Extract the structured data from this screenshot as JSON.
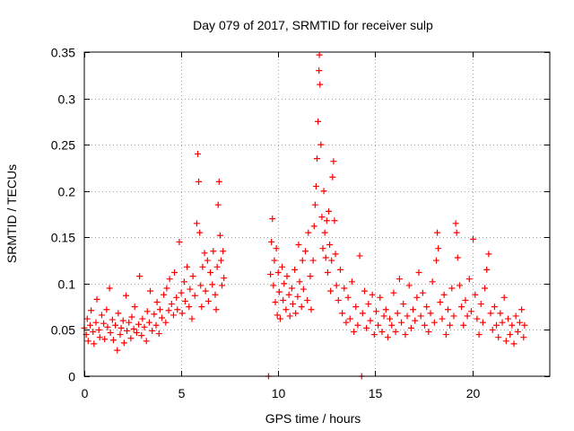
{
  "chart_data": {
    "type": "scatter",
    "title": "Day 079 of 2017, SRMTID for receiver sulp",
    "xlabel": "GPS time / hours",
    "ylabel": "SRMTID / TECUs",
    "xlim": [
      0,
      24
    ],
    "ylim": [
      0,
      0.35
    ],
    "grid": true,
    "marker": "+",
    "xticks": [
      {
        "value": 0,
        "label": "0"
      },
      {
        "value": 5,
        "label": "5"
      },
      {
        "value": 10,
        "label": "10"
      },
      {
        "value": 15,
        "label": "15"
      },
      {
        "value": 20,
        "label": "20"
      }
    ],
    "yticks": [
      {
        "value": 0,
        "label": "0"
      },
      {
        "value": 0.05,
        "label": "0.05"
      },
      {
        "value": 0.1,
        "label": "0.1"
      },
      {
        "value": 0.15,
        "label": "0.15"
      },
      {
        "value": 0.2,
        "label": "0.2"
      },
      {
        "value": 0.25,
        "label": "0.25"
      },
      {
        "value": 0.3,
        "label": "0.3"
      },
      {
        "value": 0.35,
        "label": "0.35"
      }
    ],
    "series": [
      {
        "name": "SRMTID",
        "color": "#ff0000",
        "points": [
          [
            0.0,
            0.052
          ],
          [
            0.1,
            0.045
          ],
          [
            0.15,
            0.062
          ],
          [
            0.2,
            0.038
          ],
          [
            0.3,
            0.055
          ],
          [
            0.35,
            0.071
          ],
          [
            0.45,
            0.048
          ],
          [
            0.5,
            0.035
          ],
          [
            0.6,
            0.058
          ],
          [
            0.65,
            0.083
          ],
          [
            0.75,
            0.05
          ],
          [
            0.8,
            0.042
          ],
          [
            0.9,
            0.066
          ],
          [
            1.0,
            0.057
          ],
          [
            1.05,
            0.04
          ],
          [
            1.15,
            0.072
          ],
          [
            1.2,
            0.053
          ],
          [
            1.3,
            0.095
          ],
          [
            1.35,
            0.047
          ],
          [
            1.45,
            0.061
          ],
          [
            1.5,
            0.039
          ],
          [
            1.6,
            0.055
          ],
          [
            1.7,
            0.028
          ],
          [
            1.75,
            0.068
          ],
          [
            1.85,
            0.045
          ],
          [
            1.9,
            0.052
          ],
          [
            2.0,
            0.06
          ],
          [
            2.05,
            0.036
          ],
          [
            2.15,
            0.087
          ],
          [
            2.2,
            0.049
          ],
          [
            2.3,
            0.058
          ],
          [
            2.4,
            0.041
          ],
          [
            2.45,
            0.064
          ],
          [
            2.55,
            0.051
          ],
          [
            2.6,
            0.075
          ],
          [
            2.7,
            0.047
          ],
          [
            2.8,
            0.056
          ],
          [
            2.85,
            0.108
          ],
          [
            2.95,
            0.044
          ],
          [
            3.0,
            0.062
          ],
          [
            3.1,
            0.053
          ],
          [
            3.2,
            0.038
          ],
          [
            3.25,
            0.07
          ],
          [
            3.35,
            0.058
          ],
          [
            3.4,
            0.092
          ],
          [
            3.5,
            0.049
          ],
          [
            3.6,
            0.067
          ],
          [
            3.7,
            0.055
          ],
          [
            3.75,
            0.08
          ],
          [
            3.85,
            0.046
          ],
          [
            3.9,
            0.072
          ],
          [
            4.0,
            0.063
          ],
          [
            4.1,
            0.088
          ],
          [
            4.2,
            0.058
          ],
          [
            4.25,
            0.095
          ],
          [
            4.35,
            0.071
          ],
          [
            4.4,
            0.105
          ],
          [
            4.5,
            0.078
          ],
          [
            4.6,
            0.066
          ],
          [
            4.65,
            0.112
          ],
          [
            4.75,
            0.085
          ],
          [
            4.8,
            0.072
          ],
          [
            4.9,
            0.145
          ],
          [
            5.0,
            0.09
          ],
          [
            5.05,
            0.068
          ],
          [
            5.15,
            0.102
          ],
          [
            5.2,
            0.081
          ],
          [
            5.3,
            0.118
          ],
          [
            5.4,
            0.075
          ],
          [
            5.45,
            0.094
          ],
          [
            5.55,
            0.062
          ],
          [
            5.6,
            0.108
          ],
          [
            5.7,
            0.087
          ],
          [
            5.8,
            0.165
          ],
          [
            5.85,
            0.24
          ],
          [
            5.9,
            0.21
          ],
          [
            5.95,
            0.155
          ],
          [
            6.0,
            0.098
          ],
          [
            6.05,
            0.075
          ],
          [
            6.1,
            0.118
          ],
          [
            6.2,
            0.133
          ],
          [
            6.25,
            0.092
          ],
          [
            6.35,
            0.125
          ],
          [
            6.4,
            0.081
          ],
          [
            6.5,
            0.112
          ],
          [
            6.6,
            0.099
          ],
          [
            6.65,
            0.135
          ],
          [
            6.75,
            0.088
          ],
          [
            6.8,
            0.072
          ],
          [
            6.85,
            0.118
          ],
          [
            6.9,
            0.185
          ],
          [
            6.95,
            0.21
          ],
          [
            7.0,
            0.152
          ],
          [
            7.05,
            0.125
          ],
          [
            7.1,
            0.098
          ],
          [
            7.15,
            0.135
          ],
          [
            7.2,
            0.106
          ],
          [
            9.5,
            0.0
          ],
          [
            9.6,
            0.11
          ],
          [
            9.65,
            0.145
          ],
          [
            9.7,
            0.17
          ],
          [
            9.75,
            0.098
          ],
          [
            9.8,
            0.125
          ],
          [
            9.85,
            0.08
          ],
          [
            9.9,
            0.138
          ],
          [
            9.95,
            0.066
          ],
          [
            10.0,
            0.112
          ],
          [
            10.05,
            0.091
          ],
          [
            10.1,
            0.062
          ],
          [
            10.2,
            0.118
          ],
          [
            10.25,
            0.082
          ],
          [
            10.3,
            0.1
          ],
          [
            10.4,
            0.072
          ],
          [
            10.45,
            0.108
          ],
          [
            10.55,
            0.088
          ],
          [
            10.6,
            0.065
          ],
          [
            10.7,
            0.095
          ],
          [
            10.75,
            0.078
          ],
          [
            10.85,
            0.115
          ],
          [
            10.9,
            0.068
          ],
          [
            11.0,
            0.086
          ],
          [
            11.05,
            0.142
          ],
          [
            11.1,
            0.102
          ],
          [
            11.2,
            0.075
          ],
          [
            11.25,
            0.125
          ],
          [
            11.3,
            0.094
          ],
          [
            11.4,
            0.135
          ],
          [
            11.5,
            0.082
          ],
          [
            11.55,
            0.155
          ],
          [
            11.65,
            0.108
          ],
          [
            11.7,
            0.072
          ],
          [
            11.8,
            0.125
          ],
          [
            11.85,
            0.162
          ],
          [
            11.9,
            0.185
          ],
          [
            11.95,
            0.205
          ],
          [
            12.0,
            0.235
          ],
          [
            12.05,
            0.275
          ],
          [
            12.1,
            0.33
          ],
          [
            12.12,
            0.347
          ],
          [
            12.15,
            0.315
          ],
          [
            12.2,
            0.25
          ],
          [
            12.25,
            0.172
          ],
          [
            12.3,
            0.138
          ],
          [
            12.35,
            0.2
          ],
          [
            12.4,
            0.155
          ],
          [
            12.45,
            0.128
          ],
          [
            12.5,
            0.168
          ],
          [
            12.55,
            0.112
          ],
          [
            12.6,
            0.178
          ],
          [
            12.65,
            0.142
          ],
          [
            12.7,
            0.092
          ],
          [
            12.75,
            0.125
          ],
          [
            12.8,
            0.215
          ],
          [
            12.85,
            0.232
          ],
          [
            12.9,
            0.168
          ],
          [
            12.95,
            0.132
          ],
          [
            13.0,
            0.098
          ],
          [
            13.1,
            0.082
          ],
          [
            13.2,
            0.115
          ],
          [
            13.3,
            0.068
          ],
          [
            13.4,
            0.095
          ],
          [
            13.5,
            0.058
          ],
          [
            13.6,
            0.085
          ],
          [
            13.7,
            0.062
          ],
          [
            13.8,
            0.102
          ],
          [
            13.9,
            0.048
          ],
          [
            14.0,
            0.075
          ],
          [
            14.1,
            0.055
          ],
          [
            14.2,
            0.13
          ],
          [
            14.3,
            0.0
          ],
          [
            14.35,
            0.068
          ],
          [
            14.45,
            0.092
          ],
          [
            14.55,
            0.052
          ],
          [
            14.65,
            0.078
          ],
          [
            14.75,
            0.06
          ],
          [
            14.85,
            0.088
          ],
          [
            14.95,
            0.045
          ],
          [
            15.05,
            0.07
          ],
          [
            15.15,
            0.055
          ],
          [
            15.25,
            0.085
          ],
          [
            15.35,
            0.048
          ],
          [
            15.45,
            0.065
          ],
          [
            15.55,
            0.072
          ],
          [
            15.65,
            0.042
          ],
          [
            15.75,
            0.062
          ],
          [
            15.85,
            0.055
          ],
          [
            15.95,
            0.09
          ],
          [
            16.05,
            0.048
          ],
          [
            16.15,
            0.068
          ],
          [
            16.25,
            0.105
          ],
          [
            16.35,
            0.058
          ],
          [
            16.45,
            0.078
          ],
          [
            16.55,
            0.045
          ],
          [
            16.65,
            0.065
          ],
          [
            16.75,
            0.098
          ],
          [
            16.85,
            0.052
          ],
          [
            16.95,
            0.072
          ],
          [
            17.05,
            0.06
          ],
          [
            17.15,
            0.085
          ],
          [
            17.25,
            0.112
          ],
          [
            17.35,
            0.065
          ],
          [
            17.45,
            0.09
          ],
          [
            17.55,
            0.055
          ],
          [
            17.65,
            0.075
          ],
          [
            17.75,
            0.048
          ],
          [
            17.85,
            0.068
          ],
          [
            17.95,
            0.102
          ],
          [
            18.05,
            0.058
          ],
          [
            18.15,
            0.125
          ],
          [
            18.2,
            0.155
          ],
          [
            18.25,
            0.138
          ],
          [
            18.35,
            0.08
          ],
          [
            18.45,
            0.062
          ],
          [
            18.55,
            0.088
          ],
          [
            18.65,
            0.045
          ],
          [
            18.75,
            0.072
          ],
          [
            18.85,
            0.055
          ],
          [
            18.95,
            0.095
          ],
          [
            19.05,
            0.065
          ],
          [
            19.15,
            0.165
          ],
          [
            19.2,
            0.155
          ],
          [
            19.25,
            0.128
          ],
          [
            19.35,
            0.098
          ],
          [
            19.45,
            0.075
          ],
          [
            19.55,
            0.055
          ],
          [
            19.65,
            0.082
          ],
          [
            19.75,
            0.065
          ],
          [
            19.85,
            0.105
          ],
          [
            19.95,
            0.07
          ],
          [
            20.05,
            0.148
          ],
          [
            20.15,
            0.088
          ],
          [
            20.25,
            0.062
          ],
          [
            20.35,
            0.045
          ],
          [
            20.45,
            0.078
          ],
          [
            20.55,
            0.058
          ],
          [
            20.65,
            0.095
          ],
          [
            20.75,
            0.115
          ],
          [
            20.85,
            0.132
          ],
          [
            20.95,
            0.068
          ],
          [
            21.05,
            0.05
          ],
          [
            21.15,
            0.075
          ],
          [
            21.25,
            0.055
          ],
          [
            21.35,
            0.042
          ],
          [
            21.45,
            0.068
          ],
          [
            21.55,
            0.058
          ],
          [
            21.65,
            0.085
          ],
          [
            21.75,
            0.038
          ],
          [
            21.85,
            0.062
          ],
          [
            21.95,
            0.045
          ],
          [
            22.05,
            0.055
          ],
          [
            22.15,
            0.035
          ],
          [
            22.25,
            0.065
          ],
          [
            22.35,
            0.048
          ],
          [
            22.45,
            0.058
          ],
          [
            22.55,
            0.072
          ],
          [
            22.65,
            0.042
          ],
          [
            22.7,
            0.055
          ]
        ]
      }
    ]
  }
}
